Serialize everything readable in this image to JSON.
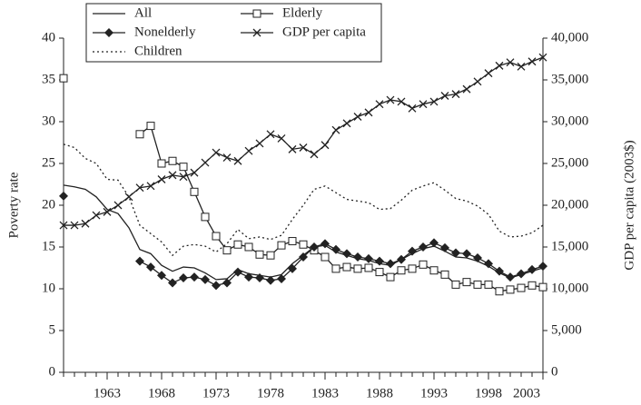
{
  "chart_data": {
    "type": "line",
    "y_label": "Poverty rate",
    "y2_label": "GDP per capita (2003$)",
    "legend": "top-left",
    "x": [
      1959,
      1960,
      1961,
      1962,
      1963,
      1964,
      1965,
      1966,
      1967,
      1968,
      1969,
      1970,
      1971,
      1972,
      1973,
      1974,
      1975,
      1976,
      1977,
      1978,
      1979,
      1980,
      1981,
      1982,
      1983,
      1984,
      1985,
      1986,
      1987,
      1988,
      1989,
      1990,
      1991,
      1992,
      1993,
      1994,
      1995,
      1996,
      1997,
      1998,
      1999,
      2000,
      2001,
      2002,
      2003
    ],
    "xlim": [
      1959,
      2003
    ],
    "xticks": [
      1963,
      1968,
      1973,
      1978,
      1983,
      1988,
      1993,
      1998,
      2003
    ],
    "ylim": [
      0,
      40
    ],
    "yticks": [
      0,
      5,
      10,
      15,
      20,
      25,
      30,
      35,
      40
    ],
    "y2lim": [
      0,
      40000
    ],
    "y2ticks": [
      0,
      {
        "value": 5000,
        "label": "5,000"
      },
      {
        "value": 10000,
        "label": "10,000"
      },
      {
        "value": 15000,
        "label": "15,000"
      },
      {
        "value": 20000,
        "label": "20,000"
      },
      {
        "value": 25000,
        "label": "25,000"
      },
      {
        "value": 30000,
        "label": "30,000"
      },
      {
        "value": 35000,
        "label": "35,000"
      },
      {
        "value": 40000,
        "label": "40,000"
      }
    ],
    "series": [
      {
        "name": "All",
        "color": "#222222",
        "marker": "none",
        "dash": "solid",
        "values": [
          22.4,
          22.2,
          21.9,
          21.0,
          19.5,
          19.0,
          17.3,
          14.7,
          14.2,
          12.8,
          12.1,
          12.6,
          12.5,
          11.9,
          11.1,
          11.2,
          12.3,
          11.8,
          11.6,
          11.4,
          11.7,
          13.0,
          14.0,
          15.0,
          15.2,
          14.4,
          14.0,
          13.6,
          13.4,
          13.0,
          12.8,
          13.5,
          14.2,
          14.8,
          15.1,
          14.5,
          13.8,
          13.7,
          13.3,
          12.7,
          11.9,
          11.3,
          11.7,
          12.1,
          12.5
        ]
      },
      {
        "name": "Elderly",
        "color": "#222222",
        "marker": "square",
        "dash": "solid",
        "values": [
          35.2,
          null,
          null,
          null,
          null,
          null,
          null,
          28.5,
          29.5,
          25.0,
          25.3,
          24.6,
          21.6,
          18.6,
          16.3,
          14.6,
          15.3,
          15.0,
          14.1,
          14.0,
          15.2,
          15.7,
          15.3,
          14.6,
          13.8,
          12.4,
          12.6,
          12.4,
          12.5,
          12.0,
          11.4,
          12.2,
          12.4,
          12.9,
          12.2,
          11.7,
          10.5,
          10.8,
          10.5,
          10.5,
          9.7,
          9.9,
          10.1,
          10.4,
          10.2
        ]
      },
      {
        "name": "Nonelderly",
        "color": "#222222",
        "marker": "diamond",
        "dash": "solid",
        "values": [
          21.1,
          null,
          null,
          null,
          null,
          null,
          null,
          13.3,
          12.6,
          11.6,
          10.7,
          11.3,
          11.4,
          11.1,
          10.4,
          10.7,
          12.0,
          11.4,
          11.3,
          11.0,
          11.2,
          12.4,
          13.8,
          15.0,
          15.4,
          14.7,
          14.2,
          13.8,
          13.6,
          13.3,
          13.0,
          13.5,
          14.5,
          15.0,
          15.5,
          14.9,
          14.3,
          14.2,
          13.7,
          13.0,
          12.1,
          11.4,
          11.8,
          12.3,
          12.7
        ]
      },
      {
        "name": "GDP per capita",
        "color": "#222222",
        "marker": "x",
        "dash": "solid",
        "axis": "y2",
        "values": [
          17600,
          17600,
          17800,
          18800,
          19200,
          20000,
          21000,
          22100,
          22300,
          23100,
          23600,
          23400,
          23900,
          25100,
          26300,
          25700,
          25300,
          26500,
          27400,
          28500,
          28000,
          26700,
          26900,
          26100,
          27200,
          29000,
          29800,
          30600,
          31100,
          32100,
          32600,
          32400,
          31600,
          32100,
          32400,
          33100,
          33300,
          33900,
          34800,
          35800,
          36700,
          37100,
          36600,
          37200,
          37700
        ]
      },
      {
        "name": "Children",
        "color": "#222222",
        "marker": "none",
        "dash": "dotted",
        "values": [
          27.3,
          26.9,
          25.6,
          25.0,
          23.1,
          23.0,
          21.0,
          17.6,
          16.6,
          15.6,
          14.0,
          15.1,
          15.3,
          15.1,
          14.4,
          15.4,
          17.1,
          16.0,
          16.2,
          15.9,
          16.4,
          18.3,
          20.0,
          21.9,
          22.3,
          21.5,
          20.7,
          20.5,
          20.3,
          19.5,
          19.6,
          20.6,
          21.8,
          22.3,
          22.7,
          21.8,
          20.8,
          20.5,
          19.9,
          18.9,
          16.9,
          16.2,
          16.3,
          16.7,
          17.6
        ]
      }
    ]
  }
}
